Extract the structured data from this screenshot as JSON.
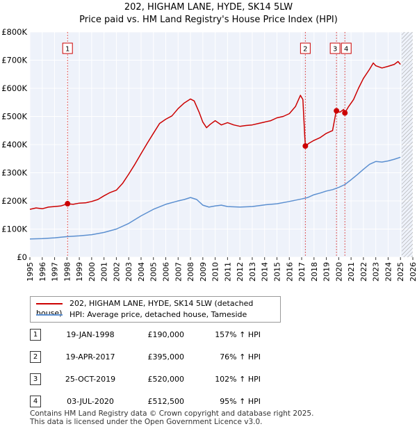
{
  "title_line1": "202, HIGHAM LANE, HYDE, SK14 5LW",
  "title_line2": "Price paid vs. HM Land Registry's House Price Index (HPI)",
  "chart_data": {
    "type": "line",
    "xlim": [
      1995,
      2026
    ],
    "ylim": [
      0,
      800000
    ],
    "x_ticks": [
      1995,
      1996,
      1997,
      1998,
      1999,
      2000,
      2001,
      2002,
      2003,
      2004,
      2005,
      2006,
      2007,
      2008,
      2009,
      2010,
      2011,
      2012,
      2013,
      2014,
      2015,
      2016,
      2017,
      2018,
      2019,
      2020,
      2021,
      2022,
      2023,
      2024,
      2025,
      2026
    ],
    "y_ticks": [
      0,
      100000,
      200000,
      300000,
      400000,
      500000,
      600000,
      700000,
      800000
    ],
    "y_tick_labels": [
      "£0",
      "£100K",
      "£200K",
      "£300K",
      "£400K",
      "£500K",
      "£600K",
      "£700K",
      "£800K"
    ],
    "future_hatch_from": 2025.1,
    "series": [
      {
        "name": "202, HIGHAM LANE, HYDE, SK14 5LW (detached house)",
        "color": "#cc0000",
        "points": [
          [
            1995.0,
            170000
          ],
          [
            1995.5,
            175000
          ],
          [
            1996.0,
            172000
          ],
          [
            1996.5,
            178000
          ],
          [
            1997.0,
            180000
          ],
          [
            1997.5,
            182000
          ],
          [
            1998.05,
            190000
          ],
          [
            1998.5,
            188000
          ],
          [
            1999.0,
            192000
          ],
          [
            1999.5,
            193000
          ],
          [
            2000.0,
            198000
          ],
          [
            2000.5,
            205000
          ],
          [
            2001.0,
            218000
          ],
          [
            2001.5,
            230000
          ],
          [
            2002.0,
            238000
          ],
          [
            2002.5,
            262000
          ],
          [
            2003.0,
            295000
          ],
          [
            2003.5,
            330000
          ],
          [
            2004.0,
            368000
          ],
          [
            2004.5,
            405000
          ],
          [
            2005.0,
            440000
          ],
          [
            2005.5,
            475000
          ],
          [
            2006.0,
            490000
          ],
          [
            2006.5,
            502000
          ],
          [
            2007.0,
            528000
          ],
          [
            2007.5,
            548000
          ],
          [
            2008.0,
            562000
          ],
          [
            2008.3,
            555000
          ],
          [
            2008.7,
            515000
          ],
          [
            2009.0,
            480000
          ],
          [
            2009.3,
            460000
          ],
          [
            2009.6,
            472000
          ],
          [
            2010.0,
            485000
          ],
          [
            2010.5,
            470000
          ],
          [
            2011.0,
            478000
          ],
          [
            2011.5,
            470000
          ],
          [
            2012.0,
            465000
          ],
          [
            2012.5,
            468000
          ],
          [
            2013.0,
            470000
          ],
          [
            2013.5,
            475000
          ],
          [
            2014.0,
            480000
          ],
          [
            2014.5,
            485000
          ],
          [
            2015.0,
            495000
          ],
          [
            2015.5,
            500000
          ],
          [
            2016.0,
            510000
          ],
          [
            2016.5,
            535000
          ],
          [
            2016.9,
            575000
          ],
          [
            2017.1,
            560000
          ],
          [
            2017.25,
            430000
          ],
          [
            2017.3,
            395000
          ],
          [
            2017.6,
            405000
          ],
          [
            2018.0,
            415000
          ],
          [
            2018.5,
            425000
          ],
          [
            2019.0,
            440000
          ],
          [
            2019.5,
            450000
          ],
          [
            2019.8,
            520000
          ],
          [
            2020.1,
            515000
          ],
          [
            2020.4,
            525000
          ],
          [
            2020.5,
            512500
          ],
          [
            2020.8,
            535000
          ],
          [
            2021.2,
            560000
          ],
          [
            2021.6,
            600000
          ],
          [
            2022.0,
            635000
          ],
          [
            2022.5,
            668000
          ],
          [
            2022.8,
            690000
          ],
          [
            2023.0,
            680000
          ],
          [
            2023.5,
            672000
          ],
          [
            2024.0,
            678000
          ],
          [
            2024.5,
            685000
          ],
          [
            2024.8,
            695000
          ],
          [
            2025.0,
            685000
          ]
        ]
      },
      {
        "name": "HPI: Average price, detached house, Tameside",
        "color": "#5b8fd0",
        "points": [
          [
            1995.0,
            65000
          ],
          [
            1996.0,
            66000
          ],
          [
            1997.0,
            69000
          ],
          [
            1998.0,
            73000
          ],
          [
            1999.0,
            76000
          ],
          [
            2000.0,
            80000
          ],
          [
            2001.0,
            88000
          ],
          [
            2002.0,
            100000
          ],
          [
            2003.0,
            120000
          ],
          [
            2004.0,
            147000
          ],
          [
            2005.0,
            170000
          ],
          [
            2006.0,
            188000
          ],
          [
            2007.0,
            200000
          ],
          [
            2007.5,
            205000
          ],
          [
            2008.0,
            212000
          ],
          [
            2008.5,
            205000
          ],
          [
            2009.0,
            185000
          ],
          [
            2009.5,
            178000
          ],
          [
            2010.0,
            182000
          ],
          [
            2010.5,
            185000
          ],
          [
            2011.0,
            180000
          ],
          [
            2012.0,
            178000
          ],
          [
            2013.0,
            180000
          ],
          [
            2014.0,
            186000
          ],
          [
            2015.0,
            190000
          ],
          [
            2016.0,
            198000
          ],
          [
            2017.0,
            207000
          ],
          [
            2017.5,
            212000
          ],
          [
            2018.0,
            222000
          ],
          [
            2018.5,
            228000
          ],
          [
            2019.0,
            235000
          ],
          [
            2019.5,
            240000
          ],
          [
            2020.0,
            248000
          ],
          [
            2020.5,
            258000
          ],
          [
            2021.0,
            275000
          ],
          [
            2021.5,
            293000
          ],
          [
            2022.0,
            312000
          ],
          [
            2022.5,
            330000
          ],
          [
            2023.0,
            340000
          ],
          [
            2023.5,
            338000
          ],
          [
            2024.0,
            342000
          ],
          [
            2024.5,
            348000
          ],
          [
            2025.0,
            355000
          ]
        ]
      }
    ],
    "sales": [
      {
        "marker": "1",
        "x": 1998.05,
        "value": 190000
      },
      {
        "marker": "2",
        "x": 2017.3,
        "value": 395000
      },
      {
        "marker": "3",
        "x": 2019.82,
        "value": 520000
      },
      {
        "marker": "4",
        "x": 2020.5,
        "value": 512500
      }
    ]
  },
  "legend": {
    "items": [
      {
        "label": "202, HIGHAM LANE, HYDE, SK14 5LW (detached house)",
        "color": "#cc0000"
      },
      {
        "label": "HPI: Average price, detached house, Tameside",
        "color": "#5b8fd0"
      }
    ]
  },
  "sales_table": [
    {
      "num": "1",
      "date": "19-JAN-1998",
      "price": "£190,000",
      "hpi": "157% ↑ HPI"
    },
    {
      "num": "2",
      "date": "19-APR-2017",
      "price": "£395,000",
      "hpi": "76% ↑ HPI"
    },
    {
      "num": "3",
      "date": "25-OCT-2019",
      "price": "£520,000",
      "hpi": "102% ↑ HPI"
    },
    {
      "num": "4",
      "date": "03-JUL-2020",
      "price": "£512,500",
      "hpi": "95% ↑ HPI"
    }
  ],
  "footer": {
    "line1": "Contains HM Land Registry data © Crown copyright and database right 2025.",
    "line2": "This data is licensed under the Open Government Licence v3.0."
  }
}
